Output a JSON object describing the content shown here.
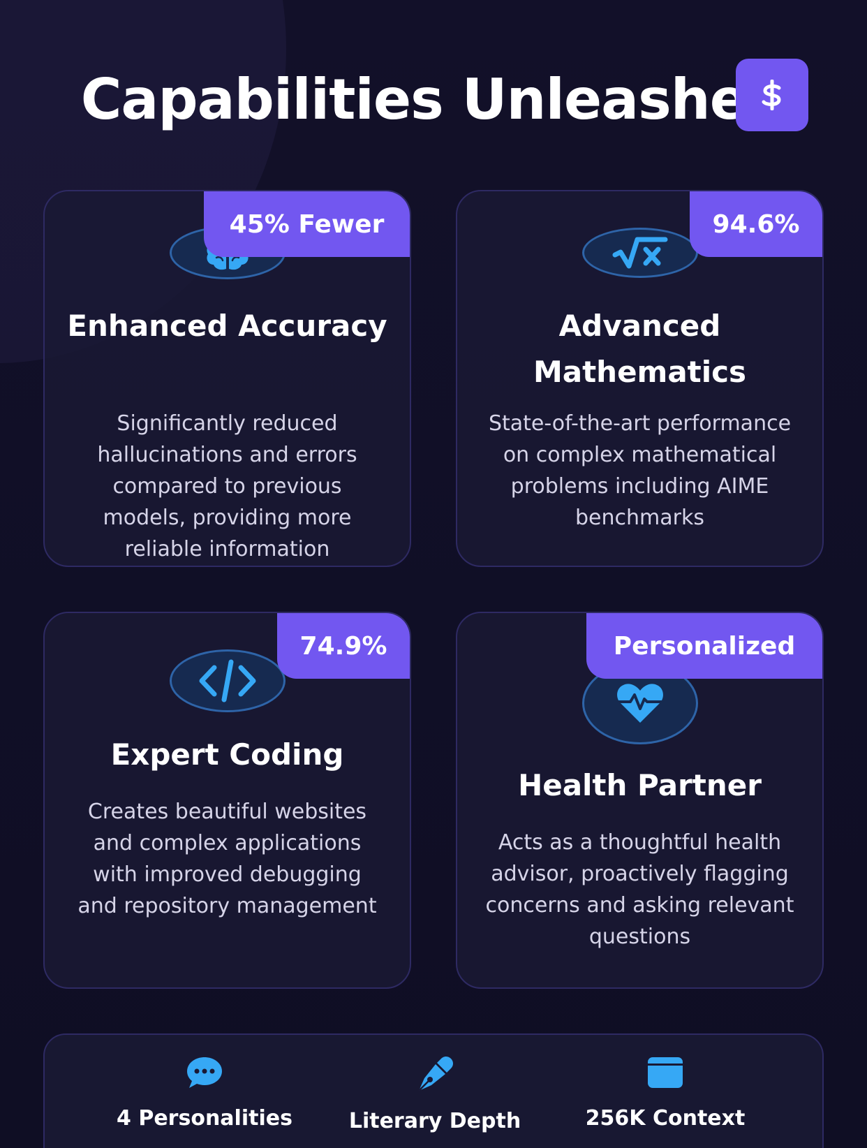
{
  "heading": "Capabilities Unleashed",
  "colors": {
    "background": "#100f26",
    "accent": "#7257f0",
    "icon_blue": "#36a8f5",
    "card_border": "#2e2a63"
  },
  "cards": [
    {
      "tag": "45% Fewer",
      "icon": "brain-icon",
      "title": "Enhanced Accuracy",
      "description": "Significantly reduced hallucinations and errors compared to previous models, providing more reliable information"
    },
    {
      "tag": "94.6%",
      "icon": "square-root-icon",
      "title": "Advanced Mathematics",
      "description": "State-of-the-art performance on complex mathematical problems including AIME benchmarks"
    },
    {
      "tag": "74.9%",
      "icon": "code-icon",
      "title": "Expert Coding",
      "description": "Creates beautiful websites and complex applications with improved debugging and repository management"
    },
    {
      "tag": "Personalized",
      "icon": "heart-pulse-icon",
      "title": "Health Partner",
      "description": "Acts as a thoughtful health advisor, proactively flagging concerns and asking relevant questions"
    }
  ],
  "stats": [
    {
      "icon": "chat-bubble-icon",
      "label": "4 Personalities"
    },
    {
      "icon": "pen-nib-icon",
      "label": "Literary Depth"
    },
    {
      "icon": "window-icon",
      "label": "256K Context"
    }
  ]
}
